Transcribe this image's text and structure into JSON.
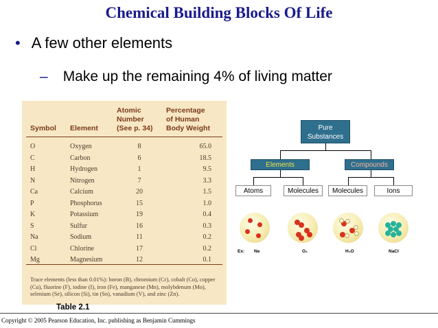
{
  "title": "Chemical Building Blocks Of Life",
  "bullet1": {
    "marker": "•",
    "text": "A few other elements"
  },
  "bullet2": {
    "marker": "–",
    "text": "Make up the remaining 4% of living matter"
  },
  "table": {
    "headers": {
      "symbol": "Symbol",
      "element": "Element",
      "atomic_number": [
        "Atomic",
        "Number",
        "(See p. 34)"
      ],
      "percentage": [
        "Percentage",
        "of Human",
        "Body Weight"
      ]
    },
    "rows": [
      {
        "symbol": "O",
        "element": "Oxygen",
        "number": "8",
        "percent": "65.0"
      },
      {
        "symbol": "C",
        "element": "Carbon",
        "number": "6",
        "percent": "18.5"
      },
      {
        "symbol": "H",
        "element": "Hydrogen",
        "number": "1",
        "percent": "9.5"
      },
      {
        "symbol": "N",
        "element": "Nitrogen",
        "number": "7",
        "percent": "3.3"
      },
      {
        "symbol": "Ca",
        "element": "Calcium",
        "number": "20",
        "percent": "1.5"
      },
      {
        "symbol": "P",
        "element": "Phosphorus",
        "number": "15",
        "percent": "1.0"
      },
      {
        "symbol": "K",
        "element": "Potassium",
        "number": "19",
        "percent": "0.4"
      },
      {
        "symbol": "S",
        "element": "Sulfur",
        "number": "16",
        "percent": "0.3"
      },
      {
        "symbol": "Na",
        "element": "Sodium",
        "number": "11",
        "percent": "0.2"
      },
      {
        "symbol": "Cl",
        "element": "Chlorine",
        "number": "17",
        "percent": "0.2"
      },
      {
        "symbol": "Mg",
        "element": "Magnesium",
        "number": "12",
        "percent": "0.1"
      }
    ],
    "trace": "Trace elements (less than 0.01%): boron (B), chromium (Cr), cobalt (Co), copper (Cu), fluorine (F), iodine (I), iron (Fe), manganese (Mn), molybdenum (Mo), selenium (Se), silicon (Si), tin (Sn), vanadium (V), and zinc (Zn).",
    "caption": "Table 2.1"
  },
  "diagram": {
    "pure": [
      "Pure",
      "Substances"
    ],
    "elements": "Elements",
    "compounds": "Compounds",
    "atoms": "Atoms",
    "molecules_el": "Molecules",
    "molecules_cmp": "Molecules",
    "ions": "Ions",
    "ex": "Ex:",
    "examples": [
      "Ne",
      "O₂",
      "H₂O",
      "NaCl"
    ],
    "colors": {
      "box": "#2f6f8e",
      "elements_text": "#f2e34a",
      "compounds_text": "#f2b5a0",
      "atom_red": "#d8321e",
      "atom_white": "#f4f0e0",
      "ion_teal": "#27b39b"
    }
  },
  "copyright": "Copyright © 2005 Pearson Education, Inc. publishing as Benjamin Cummings",
  "theme": {
    "title_color": "#1a1a8c",
    "table_bg": "#f7e7c4",
    "table_text": "#7a3a1a"
  }
}
